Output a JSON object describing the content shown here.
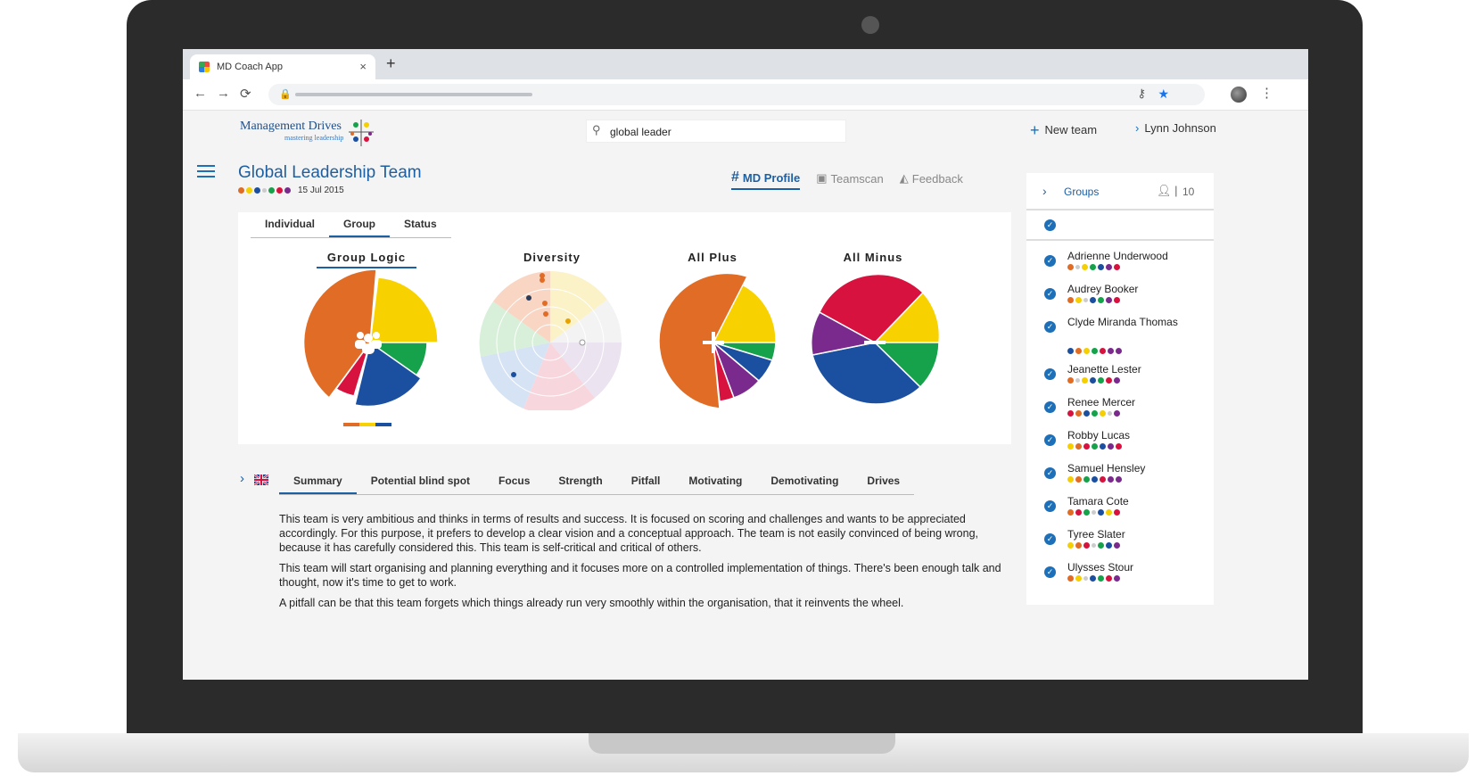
{
  "browser": {
    "tab_title": "MD Coach App",
    "close_glyph": "×",
    "newtab_glyph": "+",
    "nav": [
      "←",
      "→",
      "⟳"
    ]
  },
  "app": {
    "logo_line1": "Management Drives",
    "logo_line2": "mastering leadership",
    "search_value": "global leader",
    "new_team_label": "New team",
    "user_name": "Lynn Johnson"
  },
  "team": {
    "title": "Global Leadership Team",
    "date": "15 Jul 2015",
    "profile_colors": [
      "#e06c25",
      "#f5cf00",
      "#1b4fa0",
      "x",
      "#16a24a",
      "#d8123e",
      "#7a2a8c"
    ]
  },
  "view_tabs": [
    {
      "label": "MD Profile",
      "icon": "hash-icon",
      "active": true
    },
    {
      "label": "Teamscan",
      "icon": "teamscan-icon",
      "active": false
    },
    {
      "label": "Feedback",
      "icon": "feedback-icon",
      "active": false
    }
  ],
  "sub_tabs": [
    "Individual",
    "Group",
    "Status"
  ],
  "chart_titles": [
    "Group Logic",
    "Diversity",
    "All Plus",
    "All Minus"
  ],
  "colors": {
    "orange": "#e06c25",
    "yellow": "#f7d200",
    "green": "#16a24a",
    "blue": "#1b4fa0",
    "red": "#d8123e",
    "purple": "#7a2a8c",
    "accent": "#1d5fa3"
  },
  "text_tabs": [
    "Summary",
    "Potential blind spot",
    "Focus",
    "Strength",
    "Pitfall",
    "Motivating",
    "Demotivating",
    "Drives"
  ],
  "summary": [
    "This team is very ambitious and thinks in terms of results and success. It is focused on scoring and challenges and wants to be appreciated accordingly. For this purpose, it prefers to develop a clear vision and a conceptual approach. The team is not easily convinced of being wrong, because it has carefully considered this. This team is self-critical and critical of others.",
    "This team will start organising and planning everything and it focuses more on a controlled implementation of things. There's been enough talk and thought, now it's time to get to work.",
    "A pitfall can be that this team forgets which things already run very smoothly within the organisation, that it reinvents the wheel."
  ],
  "groups": {
    "label": "Groups",
    "count": "10",
    "members": [
      {
        "name": "Adrienne Underwood",
        "dots": [
          "#e06c25",
          "x",
          "#f5cf00",
          "#16a24a",
          "#1b4fa0",
          "#7a2a8c",
          "#d8123e"
        ]
      },
      {
        "name": "Audrey Booker",
        "dots": [
          "#e06c25",
          "#f5cf00",
          "x",
          "#1b4fa0",
          "#16a24a",
          "#7a2a8c",
          "#d8123e"
        ]
      },
      {
        "name": "Clyde Miranda Thomas",
        "dots": [
          "#1b4fa0",
          "#e06c25",
          "#f5cf00",
          "#16a24a",
          "#d8123e",
          "#7a2a8c",
          "#7a2a8c"
        ]
      },
      {
        "name": "Jeanette Lester",
        "dots": [
          "#e06c25",
          "x",
          "#f5cf00",
          "#1b4fa0",
          "#16a24a",
          "#d8123e",
          "#7a2a8c"
        ]
      },
      {
        "name": "Renee Mercer",
        "dots": [
          "#d8123e",
          "#e06c25",
          "#1b4fa0",
          "#16a24a",
          "#f5cf00",
          "x",
          "#7a2a8c"
        ]
      },
      {
        "name": "Robby Lucas",
        "dots": [
          "#f5cf00",
          "#e06c25",
          "#d8123e",
          "#16a24a",
          "#1b4fa0",
          "#7a2a8c",
          "#d8123e"
        ]
      },
      {
        "name": "Samuel Hensley",
        "dots": [
          "#f5cf00",
          "#e06c25",
          "#16a24a",
          "#1b4fa0",
          "#d8123e",
          "#7a2a8c",
          "#7a2a8c"
        ]
      },
      {
        "name": "Tamara Cote",
        "dots": [
          "#e06c25",
          "#d8123e",
          "#16a24a",
          "x",
          "#1b4fa0",
          "#f5cf00",
          "#d8123e"
        ]
      },
      {
        "name": "Tyree Slater",
        "dots": [
          "#f5cf00",
          "#e06c25",
          "#d8123e",
          "x",
          "#16a24a",
          "#1b4fa0",
          "#7a2a8c"
        ]
      },
      {
        "name": "Ulysses Stour",
        "dots": [
          "#e06c25",
          "#f5cf00",
          "x",
          "#1b4fa0",
          "#16a24a",
          "#d8123e",
          "#7a2a8c"
        ]
      }
    ]
  }
}
